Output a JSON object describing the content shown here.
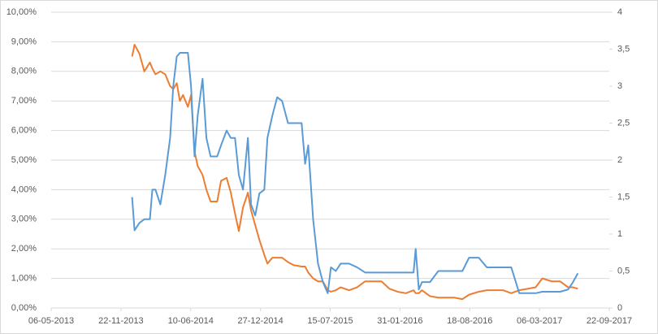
{
  "chart_data": {
    "type": "line",
    "x": [
      "2013-12-24",
      "2013-12-31",
      "2014-01-14",
      "2014-01-28",
      "2014-02-13",
      "2014-02-20",
      "2014-03-01",
      "2014-03-15",
      "2014-03-29",
      "2014-04-12",
      "2014-04-21",
      "2014-05-01",
      "2014-05-10",
      "2014-05-19",
      "2014-06-02",
      "2014-06-11",
      "2014-06-21",
      "2014-06-30",
      "2014-07-14",
      "2014-07-25",
      "2014-08-06",
      "2014-08-25",
      "2014-09-05",
      "2014-09-21",
      "2014-10-03",
      "2014-10-15",
      "2014-10-26",
      "2014-11-07",
      "2014-11-21",
      "2014-11-30",
      "2014-12-12",
      "2014-12-24",
      "2015-01-07",
      "2015-01-16",
      "2015-01-30",
      "2015-02-13",
      "2015-02-27",
      "2015-03-16",
      "2015-04-01",
      "2015-04-24",
      "2015-05-04",
      "2015-05-13",
      "2015-05-27",
      "2015-06-10",
      "2015-06-24",
      "2015-07-08",
      "2015-07-17",
      "2015-07-31",
      "2015-08-14",
      "2015-09-07",
      "2015-09-30",
      "2015-10-23",
      "2015-11-16",
      "2015-12-09",
      "2016-01-01",
      "2016-01-24",
      "2016-02-17",
      "2016-03-10",
      "2016-03-16",
      "2016-03-25",
      "2016-04-03",
      "2016-04-26",
      "2016-05-20",
      "2016-07-05",
      "2016-07-28",
      "2016-08-16",
      "2016-09-13",
      "2016-10-06",
      "2016-10-29",
      "2016-11-22",
      "2016-12-15",
      "2017-01-07",
      "2017-01-31",
      "2017-02-23",
      "2017-03-14",
      "2017-04-10",
      "2017-05-04",
      "2017-05-27",
      "2017-06-10",
      "2017-06-24"
    ],
    "series": [
      {
        "color": "#ED7D31",
        "axis": "y",
        "values": [
          8.5,
          8.9,
          8.6,
          8.0,
          8.3,
          8.1,
          7.9,
          8.0,
          7.9,
          7.5,
          7.4,
          7.6,
          7.0,
          7.2,
          6.8,
          7.2,
          5.3,
          4.8,
          4.5,
          4.0,
          3.6,
          3.6,
          4.3,
          4.4,
          3.9,
          3.2,
          2.6,
          3.4,
          3.9,
          3.3,
          2.8,
          2.3,
          1.8,
          1.5,
          1.7,
          1.7,
          1.7,
          1.55,
          1.45,
          1.4,
          1.4,
          1.2,
          1.0,
          0.9,
          0.9,
          0.6,
          0.55,
          0.6,
          0.7,
          0.6,
          0.7,
          0.9,
          0.9,
          0.9,
          0.65,
          0.55,
          0.5,
          0.6,
          0.5,
          0.5,
          0.6,
          0.4,
          0.35,
          0.35,
          0.3,
          0.45,
          0.55,
          0.6,
          0.6,
          0.6,
          0.5,
          0.6,
          0.65,
          0.7,
          1.0,
          0.9,
          0.9,
          0.7,
          0.7,
          0.65
        ]
      },
      {
        "color": "#5B9BD5",
        "axis": "y2",
        "values": [
          1.5,
          1.05,
          1.15,
          1.2,
          1.2,
          1.6,
          1.6,
          1.4,
          1.8,
          2.3,
          3.0,
          3.4,
          3.45,
          3.45,
          3.45,
          3.0,
          2.05,
          2.6,
          3.1,
          2.3,
          2.05,
          2.05,
          2.2,
          2.4,
          2.3,
          2.3,
          1.8,
          1.6,
          2.3,
          1.4,
          1.25,
          1.55,
          1.6,
          2.3,
          2.6,
          2.85,
          2.8,
          2.5,
          2.5,
          2.5,
          1.95,
          2.2,
          1.2,
          0.6,
          0.35,
          0.2,
          0.55,
          0.5,
          0.6,
          0.6,
          0.55,
          0.48,
          0.48,
          0.48,
          0.48,
          0.48,
          0.48,
          0.48,
          0.8,
          0.25,
          0.35,
          0.35,
          0.5,
          0.5,
          0.5,
          0.68,
          0.68,
          0.55,
          0.55,
          0.55,
          0.55,
          0.2,
          0.2,
          0.2,
          0.22,
          0.22,
          0.22,
          0.25,
          0.35,
          0.47
        ]
      }
    ],
    "xlim": [
      "2013-05-06",
      "2017-09-22"
    ],
    "xticks": [
      {
        "value": "2013-05-06",
        "label": "06-05-2013"
      },
      {
        "value": "2013-11-22",
        "label": "22-11-2013"
      },
      {
        "value": "2014-06-10",
        "label": "10-06-2014"
      },
      {
        "value": "2014-12-27",
        "label": "27-12-2014"
      },
      {
        "value": "2015-07-15",
        "label": "15-07-2015"
      },
      {
        "value": "2016-01-31",
        "label": "31-01-2016"
      },
      {
        "value": "2016-08-18",
        "label": "18-08-2016"
      },
      {
        "value": "2017-03-06",
        "label": "06-03-2017"
      },
      {
        "value": "2017-09-22",
        "label": "22-09-2017"
      }
    ],
    "ylim": [
      0,
      10
    ],
    "yticks": [
      {
        "value": 0,
        "label": "0,00%"
      },
      {
        "value": 1,
        "label": "1,00%"
      },
      {
        "value": 2,
        "label": "2,00%"
      },
      {
        "value": 3,
        "label": "3,00%"
      },
      {
        "value": 4,
        "label": "4,00%"
      },
      {
        "value": 5,
        "label": "5,00%"
      },
      {
        "value": 6,
        "label": "6,00%"
      },
      {
        "value": 7,
        "label": "7,00%"
      },
      {
        "value": 8,
        "label": "8,00%"
      },
      {
        "value": 9,
        "label": "9,00%"
      },
      {
        "value": 10,
        "label": "10,00%"
      }
    ],
    "y2lim": [
      0,
      4
    ],
    "y2ticks": [
      0,
      {
        "value": 0.5,
        "label": "0,5"
      },
      1,
      {
        "value": 1.5,
        "label": "1,5"
      },
      2,
      {
        "value": 2.5,
        "label": "2,5"
      },
      3,
      {
        "value": 3.5,
        "label": "3,5"
      },
      4
    ],
    "grid": true
  }
}
